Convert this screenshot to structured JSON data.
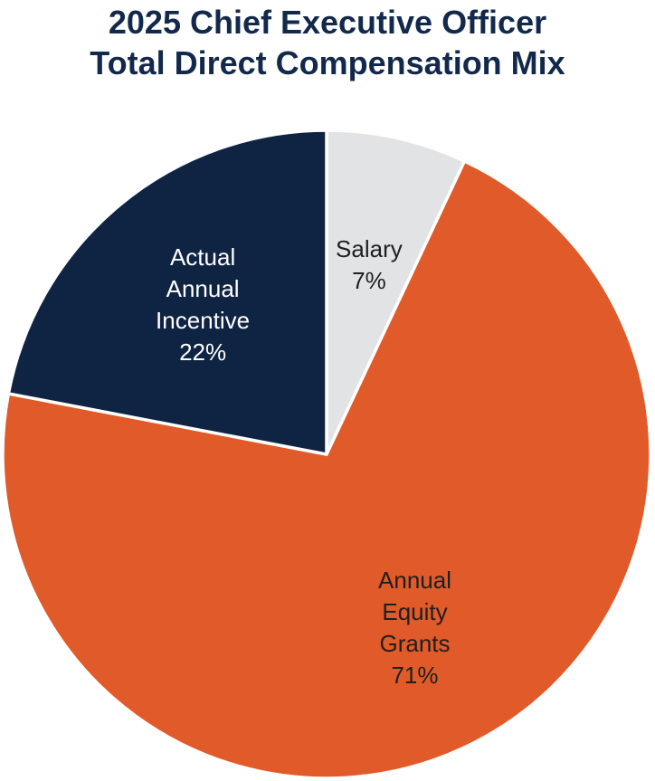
{
  "chart_data": {
    "type": "pie",
    "title": "2025 Chief Executive Officer",
    "subtitle": "Total Direct Compensation Mix",
    "start_angle_deg": 0,
    "direction": "clockwise",
    "slices": [
      {
        "name": "Salary",
        "label_lines": [
          "Salary"
        ],
        "value": 7,
        "display": "7%",
        "color": "#e2e3e5",
        "label_color": "#1f1f1f"
      },
      {
        "name": "Annual Equity Grants",
        "label_lines": [
          "Annual",
          "Equity",
          "Grants"
        ],
        "value": 71,
        "display": "71%",
        "color": "#e05a2a",
        "label_color": "#1f1f1f"
      },
      {
        "name": "Actual Annual Incentive",
        "label_lines": [
          "Actual",
          "Annual",
          "Incentive"
        ],
        "value": 22,
        "display": "22%",
        "color": "#0f2442",
        "label_color": "#ffffff"
      }
    ]
  }
}
